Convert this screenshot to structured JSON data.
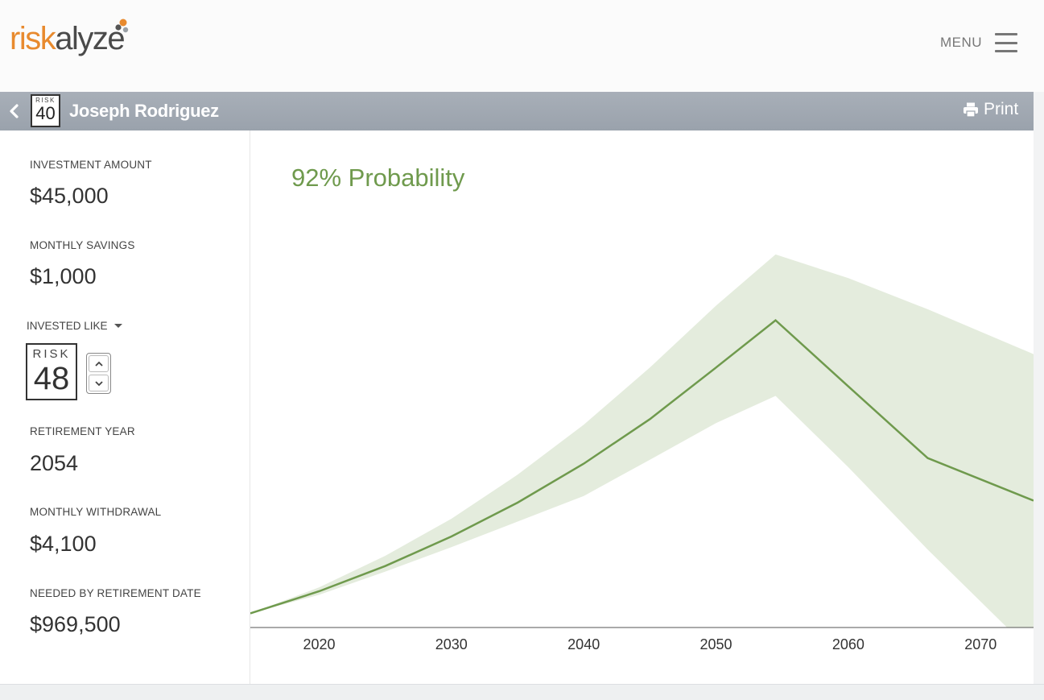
{
  "app": {
    "logo_part1": "risk",
    "logo_part2": "alyze",
    "menu_label": "MENU"
  },
  "client": {
    "risk_label": "RISK",
    "risk_score": "40",
    "name": "Joseph Rodriguez",
    "print_label": "Print"
  },
  "fields": {
    "investment_amount_label": "INVESTMENT AMOUNT",
    "investment_amount": "$45,000",
    "monthly_savings_label": "MONTHLY SAVINGS",
    "monthly_savings": "$1,000",
    "invested_like_label": "INVESTED LIKE",
    "invested_risk_label": "RISK",
    "invested_risk_score": "48",
    "retirement_year_label": "RETIREMENT YEAR",
    "retirement_year": "2054",
    "monthly_withdrawal_label": "MONTHLY WITHDRAWAL",
    "monthly_withdrawal": "$4,100",
    "needed_label": "NEEDED BY RETIREMENT DATE",
    "needed_value": "$969,500"
  },
  "probability_text": "92% Probability",
  "colors": {
    "accent_green": "#6f9a4d",
    "band_green": "#e4ecdd",
    "logo_orange": "#e88a2e",
    "header_gray": "#a1a8b1"
  },
  "icons": {
    "back": "chevron-left-icon",
    "menu": "hamburger-icon",
    "print": "printer-icon",
    "dropdown": "caret-down-icon",
    "step_up": "chevron-up-icon",
    "step_down": "chevron-down-icon"
  },
  "chart_data": {
    "type": "area",
    "title": "92% Probability",
    "xlabel": "",
    "ylabel": "",
    "x_ticks": [
      2020,
      2030,
      2040,
      2050,
      2060,
      2070
    ],
    "x_range": [
      2014.8,
      2074
    ],
    "y_range": [
      0,
      100
    ],
    "grid": false,
    "series": [
      {
        "role": "median",
        "x": [
          2014.8,
          2020,
          2025,
          2030,
          2035,
          2040,
          2045,
          2050,
          2054.5,
          2060,
          2066,
          2074
        ],
        "y": [
          3.6,
          9.2,
          15.6,
          23.1,
          31.7,
          41.6,
          52.9,
          66.0,
          78.0,
          61.2,
          43.0,
          32.2
        ]
      },
      {
        "role": "upper",
        "x": [
          2014.8,
          2020,
          2025,
          2030,
          2035,
          2040,
          2045,
          2050,
          2054.5,
          2060,
          2066,
          2074
        ],
        "y": [
          3.6,
          10.2,
          18.2,
          27.6,
          38.8,
          51.5,
          66.0,
          81.7,
          94.7,
          88.7,
          80.8,
          69.4
        ]
      },
      {
        "role": "lower",
        "x": [
          2014.8,
          2020,
          2025,
          2030,
          2035,
          2040,
          2045,
          2050,
          2054.5,
          2060,
          2066,
          2072
        ],
        "y": [
          3.6,
          8.3,
          14.2,
          20.4,
          26.9,
          33.4,
          42.6,
          51.9,
          58.8,
          40.7,
          19.8,
          0
        ]
      }
    ]
  }
}
